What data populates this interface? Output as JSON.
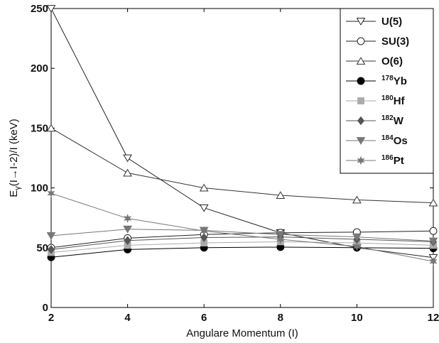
{
  "chart_data": {
    "type": "line",
    "title": "",
    "xlabel": "Angulare Momentum (I)",
    "ylabel_parts": {
      "main": "E",
      "sub": "γ",
      "rest": "(I→I-2)/I (keV)"
    },
    "xlim": [
      2,
      12
    ],
    "ylim": [
      0,
      250
    ],
    "xticks": [
      2,
      4,
      6,
      8,
      10,
      12
    ],
    "yticks": [
      0,
      50,
      100,
      150,
      200,
      250
    ],
    "x": [
      2,
      4,
      6,
      8,
      10,
      12
    ],
    "legend_position": "top-right",
    "grid": false,
    "series": [
      {
        "name": "U(5)",
        "sup": "",
        "base": "U(5)",
        "marker": "triangle-down-open",
        "color": "#222222",
        "values": [
          250,
          125,
          83.3,
          62.5,
          50,
          41.7
        ]
      },
      {
        "name": "SU(3)",
        "sup": "",
        "base": "SU(3)",
        "marker": "circle-open",
        "color": "#222222",
        "values": [
          50,
          58,
          61,
          62.5,
          63,
          64
        ]
      },
      {
        "name": "O(6)",
        "sup": "",
        "base": "O(6)",
        "marker": "triangle-up-open",
        "color": "#333333",
        "values": [
          150,
          112.5,
          100,
          93.8,
          90,
          87.5
        ]
      },
      {
        "name": "178Yb",
        "sup": "178",
        "base": "Yb",
        "marker": "circle-filled",
        "color": "#000000",
        "values": [
          42,
          48.5,
          50,
          50.5,
          50,
          49.5
        ]
      },
      {
        "name": "180Hf",
        "sup": "180",
        "base": "Hf",
        "marker": "square-filled",
        "color": "#aaaaaa",
        "values": [
          46,
          52,
          54,
          55,
          54,
          52
        ]
      },
      {
        "name": "182W",
        "sup": "182",
        "base": "W",
        "marker": "diamond-filled",
        "color": "#555555",
        "values": [
          48.5,
          56,
          58.5,
          59,
          57,
          55
        ]
      },
      {
        "name": "184Os",
        "sup": "184",
        "base": "Os",
        "marker": "triangle-down-filled",
        "color": "#777777",
        "values": [
          60,
          65.5,
          64.5,
          61,
          59,
          55.5
        ]
      },
      {
        "name": "186Pt",
        "sup": "186",
        "base": "Pt",
        "marker": "star",
        "color": "#777777",
        "values": [
          95.5,
          74.5,
          64,
          57,
          51,
          38.5
        ]
      }
    ]
  }
}
